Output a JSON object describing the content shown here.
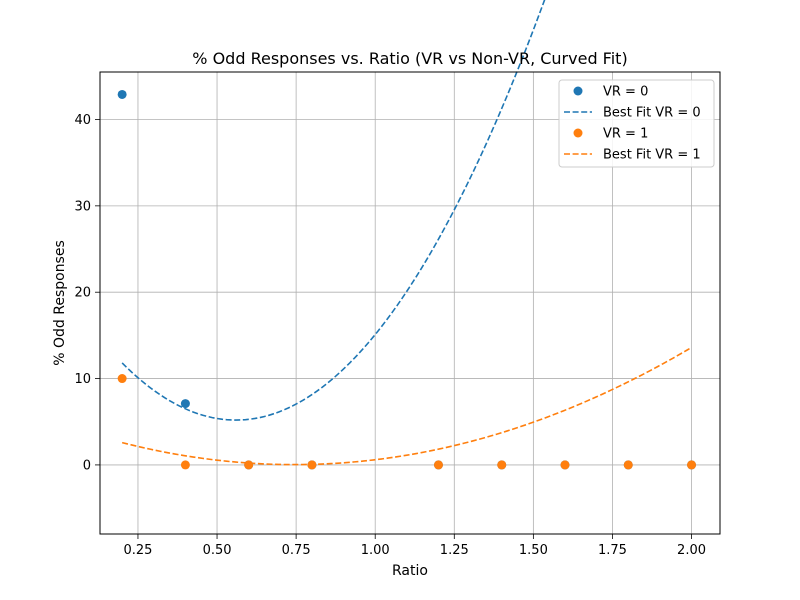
{
  "chart_data": {
    "type": "scatter",
    "title": "% Odd Responses vs. Ratio (VR vs Non-VR, Curved Fit)",
    "xlabel": "Ratio",
    "ylabel": "% Odd Responses",
    "xlim": [
      0.13,
      2.09
    ],
    "ylim": [
      -8,
      45.5
    ],
    "x_ticks": [
      0.25,
      0.5,
      0.75,
      1.0,
      1.25,
      1.5,
      1.75,
      2.0
    ],
    "x_tick_labels": [
      "0.25",
      "0.50",
      "0.75",
      "1.00",
      "1.25",
      "1.50",
      "1.75",
      "2.00"
    ],
    "y_ticks": [
      0,
      10,
      20,
      30,
      40
    ],
    "y_tick_labels": [
      "0",
      "10",
      "20",
      "30",
      "40"
    ],
    "grid": true,
    "legend_position": "top-right",
    "series": [
      {
        "name": "VR = 0",
        "kind": "scatter",
        "color": "#1f77b4",
        "points": [
          [
            0.2,
            42.9
          ],
          [
            0.4,
            7.1
          ],
          [
            0.6,
            0
          ],
          [
            0.8,
            0
          ],
          [
            1.2,
            0
          ],
          [
            1.4,
            0
          ],
          [
            1.6,
            0
          ],
          [
            1.8,
            0
          ],
          [
            2.0,
            0
          ]
        ]
      },
      {
        "name": "Best Fit VR = 0",
        "kind": "quadratic-fit",
        "color": "#1f77b4",
        "x_range": [
          0.2,
          2.0
        ],
        "coefficients": [
          21.2,
          -57.2,
          51.1
        ]
      },
      {
        "name": "VR = 1",
        "kind": "scatter",
        "color": "#ff7f0e",
        "points": [
          [
            0.2,
            10
          ],
          [
            0.4,
            0
          ],
          [
            0.6,
            0
          ],
          [
            0.8,
            0
          ],
          [
            1.2,
            0
          ],
          [
            1.4,
            0
          ],
          [
            1.6,
            0
          ],
          [
            1.8,
            0
          ],
          [
            2.0,
            0
          ]
        ]
      },
      {
        "name": "Best Fit VR = 1",
        "kind": "quadratic-fit",
        "color": "#ff7f0e",
        "x_range": [
          0.2,
          2.0
        ],
        "coefficients": [
          4.8,
          -12.8,
          8.6
        ]
      }
    ]
  }
}
